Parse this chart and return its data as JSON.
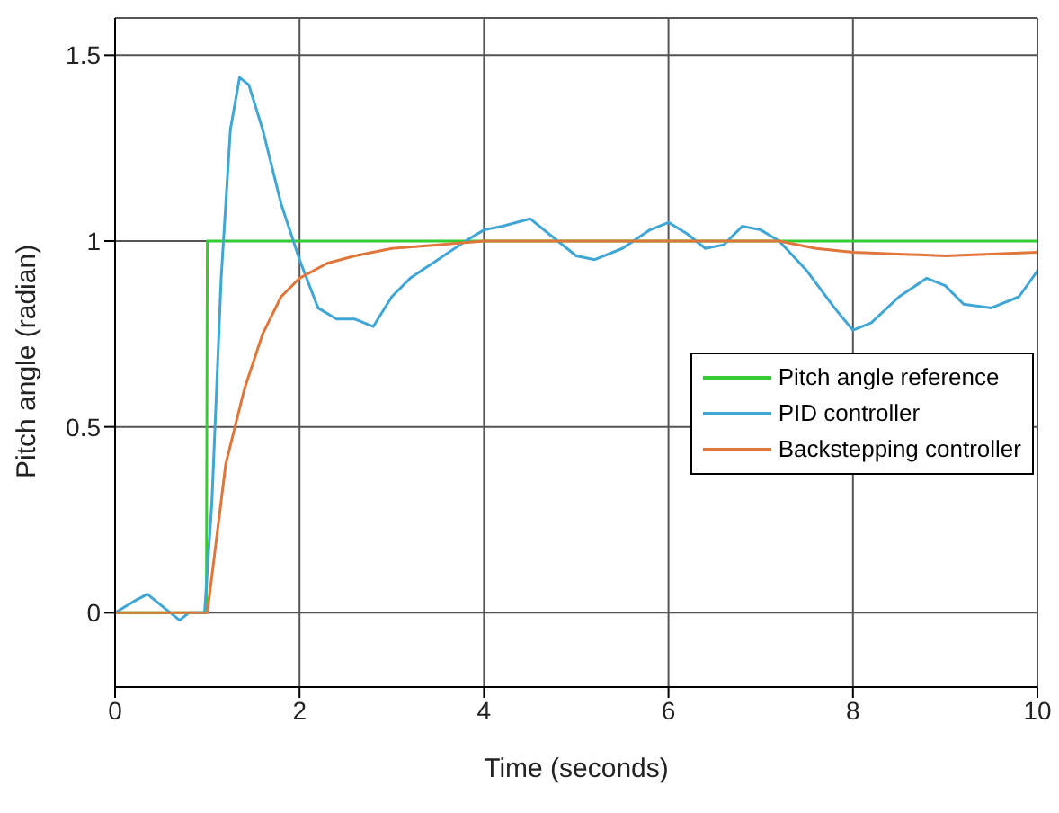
{
  "chart_data": {
    "type": "line",
    "xlabel": "Time (seconds)",
    "ylabel": "Pitch angle (radian)",
    "xlim": [
      0,
      10
    ],
    "xticks": [
      0,
      2,
      4,
      6,
      8,
      10
    ],
    "ylim": [
      -0.2,
      1.6
    ],
    "yticks": [
      0,
      0.5,
      1,
      1.5
    ],
    "grid": true,
    "legend": "right",
    "marker": "none",
    "line_style": "solid",
    "series": [
      {
        "name": "Pitch angle reference",
        "color": "#33cc33",
        "x": [
          0,
          0.99,
          1,
          10
        ],
        "values": [
          0,
          0,
          1,
          1
        ]
      },
      {
        "name": "PID controller",
        "color": "#3fa6d6",
        "x": [
          0,
          0.2,
          0.35,
          0.5,
          0.7,
          0.8,
          0.97,
          1.05,
          1.15,
          1.25,
          1.35,
          1.45,
          1.6,
          1.8,
          2.0,
          2.2,
          2.4,
          2.6,
          2.8,
          3.0,
          3.2,
          3.5,
          3.8,
          4.0,
          4.2,
          4.5,
          4.8,
          5.0,
          5.2,
          5.5,
          5.8,
          6.0,
          6.2,
          6.4,
          6.6,
          6.8,
          7.0,
          7.2,
          7.5,
          7.8,
          8.0,
          8.2,
          8.5,
          8.8,
          9.0,
          9.2,
          9.5,
          9.8,
          10
        ],
        "values": [
          0,
          0.03,
          0.05,
          0.02,
          -0.02,
          0,
          0,
          0.3,
          0.9,
          1.3,
          1.44,
          1.42,
          1.3,
          1.1,
          0.95,
          0.82,
          0.79,
          0.79,
          0.77,
          0.85,
          0.9,
          0.95,
          1.0,
          1.03,
          1.04,
          1.06,
          1.0,
          0.96,
          0.95,
          0.98,
          1.03,
          1.05,
          1.02,
          0.98,
          0.99,
          1.04,
          1.03,
          1.0,
          0.92,
          0.82,
          0.76,
          0.78,
          0.85,
          0.9,
          0.88,
          0.83,
          0.82,
          0.85,
          0.92
        ]
      },
      {
        "name": "Backstepping controller",
        "color": "#e0763a",
        "x": [
          0,
          1,
          1.1,
          1.2,
          1.4,
          1.6,
          1.8,
          2.0,
          2.3,
          2.6,
          3.0,
          3.5,
          4,
          6,
          7.2,
          7.6,
          8,
          9,
          10
        ],
        "values": [
          0,
          0,
          0.2,
          0.4,
          0.6,
          0.75,
          0.85,
          0.9,
          0.94,
          0.96,
          0.98,
          0.99,
          1.0,
          1.0,
          1.0,
          0.98,
          0.97,
          0.96,
          0.97
        ]
      }
    ]
  }
}
